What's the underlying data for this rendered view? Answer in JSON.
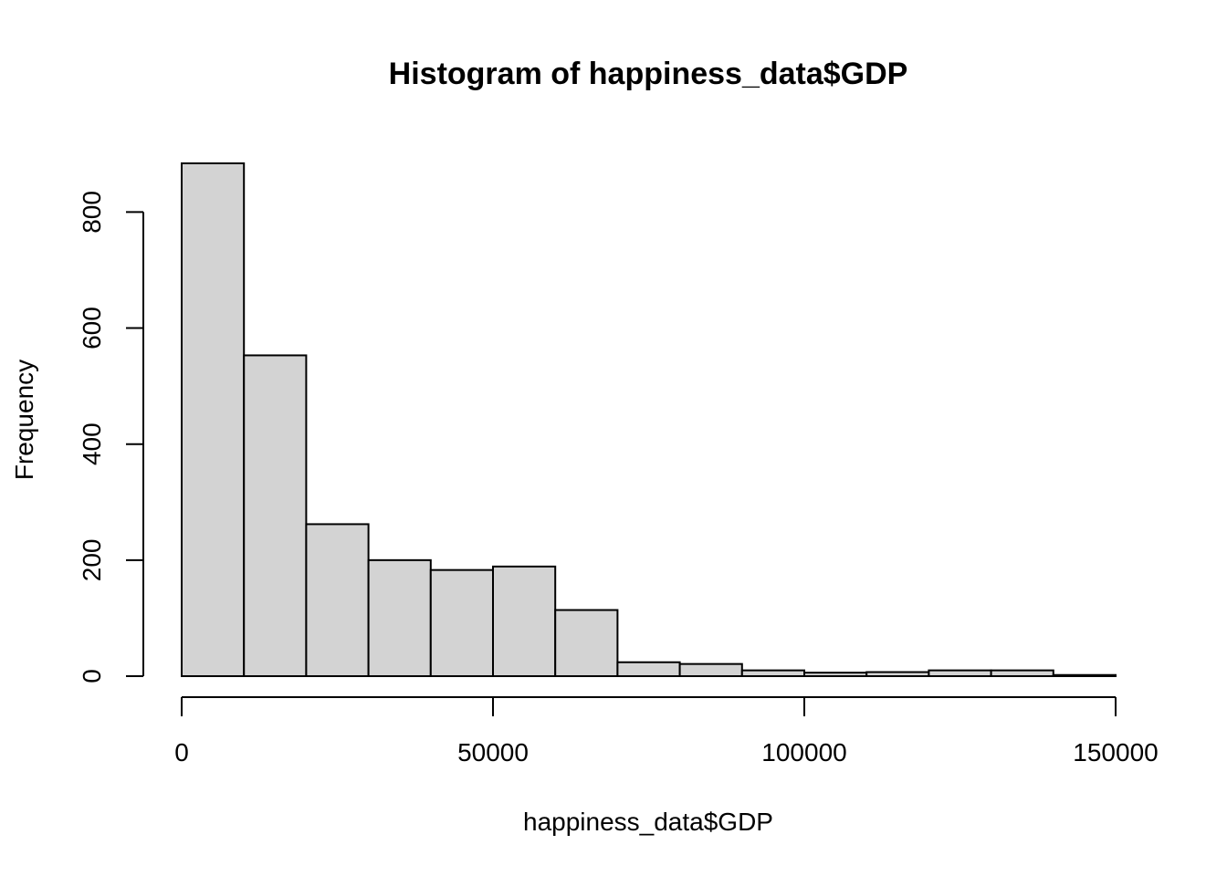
{
  "chart_data": {
    "type": "bar",
    "title": "Histogram of happiness_data$GDP",
    "xlabel": "happiness_data$GDP",
    "ylabel": "Frequency",
    "bin_edges": [
      0,
      10000,
      20000,
      30000,
      40000,
      50000,
      60000,
      70000,
      80000,
      90000,
      100000,
      110000,
      120000,
      130000,
      140000,
      150000
    ],
    "values": [
      884,
      553,
      262,
      200,
      183,
      189,
      114,
      24,
      21,
      10,
      6,
      7,
      10,
      10,
      2
    ],
    "xlim": [
      0,
      150000
    ],
    "ylim": [
      0,
      884
    ],
    "x_ticks": [
      0,
      50000,
      100000,
      150000
    ],
    "x_tick_labels": [
      "0",
      "50000",
      "100000",
      "150000"
    ],
    "y_ticks": [
      0,
      200,
      400,
      600,
      800
    ],
    "y_tick_labels": [
      "0",
      "200",
      "400",
      "600",
      "800"
    ],
    "bar_fill": "#d3d3d3",
    "bar_stroke": "#000000",
    "grid": false
  }
}
